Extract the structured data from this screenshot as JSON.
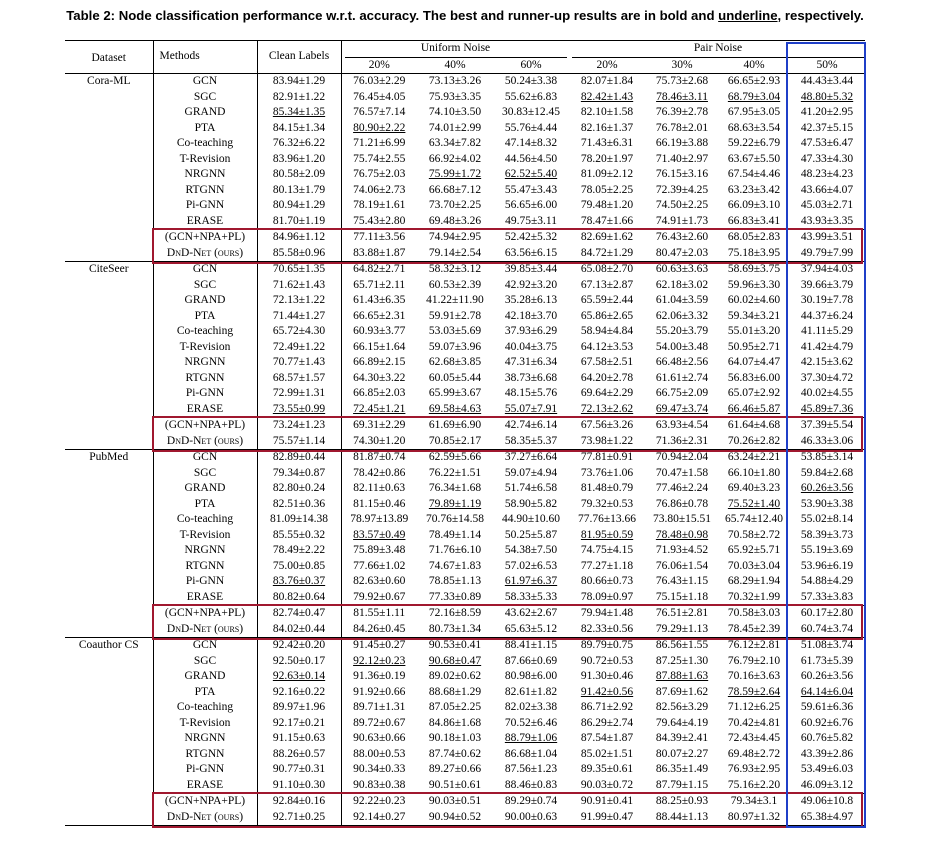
{
  "caption": {
    "prefix": "Table 2: Node classification performance w.r.t. accuracy. The best and runner-up results are in bold and ",
    "underline_word": "underline",
    "suffix": ", respectively."
  },
  "header": {
    "dataset": "Dataset",
    "methods": "Methods",
    "clean": "Clean Labels",
    "uniform": "Uniform Noise",
    "pair": "Pair Noise",
    "rates": [
      "20%",
      "40%",
      "60%",
      "20%",
      "30%",
      "40%",
      "50%"
    ]
  },
  "highlight_colors": {
    "row_box": "#a0182f",
    "column_box": "#1f3fc8"
  },
  "datasets": [
    {
      "name": "Cora-ML",
      "rows": [
        {
          "m": "GCN",
          "v": [
            "83.94±1.29",
            "76.03±2.29",
            "73.13±3.26",
            "50.24±3.38",
            "82.07±1.84",
            "75.73±2.68",
            "66.65±2.93",
            "44.43±3.44"
          ]
        },
        {
          "m": "SGC",
          "v": [
            "82.91±1.22",
            "76.45±4.05",
            "75.93±3.35",
            "55.62±6.83",
            "82.42±1.43",
            "78.46±3.11",
            "68.79±3.04",
            "48.80±5.32"
          ]
        },
        {
          "m": "GRAND",
          "v": [
            "85.34±1.35",
            "76.57±7.14",
            "74.10±3.50",
            "30.83±12.45",
            "82.10±1.58",
            "76.39±2.78",
            "67.95±3.05",
            "41.20±2.95"
          ]
        },
        {
          "m": "PTA",
          "v": [
            "84.15±1.34",
            "80.90±2.22",
            "74.01±2.99",
            "55.76±4.44",
            "82.16±1.37",
            "76.78±2.01",
            "68.63±3.54",
            "42.37±5.15"
          ]
        },
        {
          "m": "Co-teaching",
          "v": [
            "76.32±6.22",
            "71.21±6.99",
            "63.34±7.82",
            "47.14±8.32",
            "71.43±6.31",
            "66.19±3.88",
            "59.22±6.79",
            "47.53±6.47"
          ]
        },
        {
          "m": "T-Revision",
          "v": [
            "83.96±1.20",
            "75.74±2.55",
            "66.92±4.02",
            "44.56±4.50",
            "78.20±1.97",
            "71.40±2.97",
            "63.67±5.50",
            "47.33±4.30"
          ]
        },
        {
          "m": "NRGNN",
          "v": [
            "80.58±2.09",
            "76.75±2.03",
            "75.99±1.72",
            "62.52±5.40",
            "81.09±2.12",
            "76.15±3.16",
            "67.54±4.46",
            "48.23±4.23"
          ]
        },
        {
          "m": "RTGNN",
          "v": [
            "80.13±1.79",
            "74.06±2.73",
            "66.68±7.12",
            "55.47±3.43",
            "78.05±2.25",
            "72.39±4.25",
            "63.23±3.42",
            "43.66±4.07"
          ]
        },
        {
          "m": "Pi-GNN",
          "v": [
            "80.94±1.29",
            "78.19±1.61",
            "73.70±2.25",
            "56.65±6.00",
            "79.48±1.20",
            "74.50±2.25",
            "66.09±3.10",
            "45.03±2.71"
          ]
        },
        {
          "m": "ERASE",
          "v": [
            "81.70±1.19",
            "75.43±2.80",
            "69.48±3.26",
            "49.75±3.11",
            "78.47±1.66",
            "74.91±1.73",
            "66.83±3.41",
            "43.93±3.35"
          ]
        },
        {
          "m": "(GCN+NPA+PL)",
          "v": [
            "84.96±1.12",
            "77.11±3.56",
            "74.94±2.95",
            "52.42±5.32",
            "82.69±1.62",
            "76.43±2.60",
            "68.05±2.83",
            "43.99±3.51"
          ]
        },
        {
          "m": "DnD-Net (ours)",
          "v": [
            "85.58±0.96",
            "83.88±1.87",
            "79.14±2.54",
            "63.56±6.15",
            "84.72±1.29",
            "80.47±2.03",
            "75.18±3.95",
            "49.79±7.99"
          ]
        }
      ]
    },
    {
      "name": "CiteSeer",
      "rows": [
        {
          "m": "GCN",
          "v": [
            "70.65±1.35",
            "64.82±2.71",
            "58.32±3.12",
            "39.85±3.44",
            "65.08±2.70",
            "60.63±3.63",
            "58.69±3.75",
            "37.94±4.03"
          ]
        },
        {
          "m": "SGC",
          "v": [
            "71.62±1.43",
            "65.71±2.11",
            "60.53±2.39",
            "42.92±3.20",
            "67.13±2.87",
            "62.18±3.02",
            "59.96±3.30",
            "39.66±3.79"
          ]
        },
        {
          "m": "GRAND",
          "v": [
            "72.13±1.22",
            "61.43±6.35",
            "41.22±11.90",
            "35.28±6.13",
            "65.59±2.44",
            "61.04±3.59",
            "60.02±4.60",
            "30.19±7.78"
          ]
        },
        {
          "m": "PTA",
          "v": [
            "71.44±1.27",
            "66.65±2.31",
            "59.91±2.78",
            "42.18±3.70",
            "65.86±2.65",
            "62.06±3.32",
            "59.34±3.21",
            "44.37±6.24"
          ]
        },
        {
          "m": "Co-teaching",
          "v": [
            "65.72±4.30",
            "60.93±3.77",
            "53.03±5.69",
            "37.93±6.29",
            "58.94±4.84",
            "55.20±3.79",
            "55.01±3.20",
            "41.11±5.29"
          ]
        },
        {
          "m": "T-Revision",
          "v": [
            "72.49±1.22",
            "66.15±1.64",
            "59.07±3.96",
            "40.04±3.75",
            "64.12±3.53",
            "54.00±3.48",
            "50.95±2.71",
            "41.42±4.79"
          ]
        },
        {
          "m": "NRGNN",
          "v": [
            "70.77±1.43",
            "66.89±2.15",
            "62.68±3.85",
            "47.31±6.34",
            "67.58±2.51",
            "66.48±2.56",
            "64.07±4.47",
            "42.15±3.62"
          ]
        },
        {
          "m": "RTGNN",
          "v": [
            "68.57±1.57",
            "64.30±3.22",
            "60.05±5.44",
            "38.73±6.68",
            "64.20±2.78",
            "61.61±2.74",
            "56.83±6.00",
            "37.30±4.72"
          ]
        },
        {
          "m": "Pi-GNN",
          "v": [
            "72.99±1.31",
            "66.85±2.03",
            "65.99±3.67",
            "48.15±5.76",
            "69.64±2.29",
            "66.75±2.09",
            "65.07±2.92",
            "40.02±4.55"
          ]
        },
        {
          "m": "ERASE",
          "v": [
            "73.55±0.99",
            "72.45±1.21",
            "69.58±4.63",
            "55.07±7.91",
            "72.13±2.62",
            "69.47±3.74",
            "66.46±5.87",
            "45.89±7.36"
          ]
        },
        {
          "m": "(GCN+NPA+PL)",
          "v": [
            "73.24±1.23",
            "69.31±2.29",
            "61.69±6.90",
            "42.74±6.14",
            "67.56±3.26",
            "63.93±4.54",
            "61.64±4.68",
            "37.39±5.54"
          ]
        },
        {
          "m": "DnD-Net (ours)",
          "v": [
            "75.57±1.14",
            "74.30±1.20",
            "70.85±2.17",
            "58.35±5.37",
            "73.98±1.22",
            "71.36±2.31",
            "70.26±2.82",
            "46.33±3.06"
          ]
        }
      ]
    },
    {
      "name": "PubMed",
      "rows": [
        {
          "m": "GCN",
          "v": [
            "82.89±0.44",
            "81.87±0.74",
            "62.59±5.66",
            "37.27±6.64",
            "77.81±0.91",
            "70.94±2.04",
            "63.24±2.21",
            "53.85±3.14"
          ]
        },
        {
          "m": "SGC",
          "v": [
            "79.34±0.87",
            "78.42±0.86",
            "76.22±1.51",
            "59.07±4.94",
            "73.76±1.06",
            "70.47±1.58",
            "66.10±1.80",
            "59.84±2.68"
          ]
        },
        {
          "m": "GRAND",
          "v": [
            "82.80±0.24",
            "82.11±0.63",
            "76.34±1.68",
            "51.74±6.58",
            "81.48±0.79",
            "77.46±2.24",
            "69.40±3.23",
            "60.26±3.56"
          ]
        },
        {
          "m": "PTA",
          "v": [
            "82.51±0.36",
            "81.15±0.46",
            "79.89±1.19",
            "58.90±5.82",
            "79.32±0.53",
            "76.86±0.78",
            "75.52±1.40",
            "53.90±3.38"
          ]
        },
        {
          "m": "Co-teaching",
          "v": [
            "81.09±14.38",
            "78.97±13.89",
            "70.76±14.58",
            "44.90±10.60",
            "77.76±13.66",
            "73.80±15.51",
            "65.74±12.40",
            "55.02±8.14"
          ]
        },
        {
          "m": "T-Revision",
          "v": [
            "85.55±0.32",
            "83.57±0.49",
            "78.49±1.14",
            "50.25±5.87",
            "81.95±0.59",
            "78.48±0.98",
            "70.58±2.72",
            "58.39±3.73"
          ]
        },
        {
          "m": "NRGNN",
          "v": [
            "78.49±2.22",
            "75.89±3.48",
            "71.76±6.10",
            "54.38±7.50",
            "74.75±4.15",
            "71.93±4.52",
            "65.92±5.71",
            "55.19±3.69"
          ]
        },
        {
          "m": "RTGNN",
          "v": [
            "75.00±0.85",
            "77.66±1.02",
            "74.67±1.83",
            "57.02±6.53",
            "77.27±1.18",
            "76.06±1.54",
            "70.03±3.04",
            "53.96±6.19"
          ]
        },
        {
          "m": "Pi-GNN",
          "v": [
            "83.76±0.37",
            "82.63±0.60",
            "78.85±1.13",
            "61.97±6.37",
            "80.66±0.73",
            "76.43±1.15",
            "68.29±1.94",
            "54.88±4.29"
          ]
        },
        {
          "m": "ERASE",
          "v": [
            "80.82±0.64",
            "79.92±0.67",
            "77.33±0.89",
            "58.33±5.33",
            "78.09±0.97",
            "75.15±1.18",
            "70.32±1.99",
            "57.33±3.83"
          ]
        },
        {
          "m": "(GCN+NPA+PL)",
          "v": [
            "82.74±0.47",
            "81.55±1.11",
            "72.16±8.59",
            "43.62±2.67",
            "79.94±1.48",
            "76.51±2.81",
            "70.58±3.03",
            "60.17±2.80"
          ]
        },
        {
          "m": "DnD-Net (ours)",
          "v": [
            "84.02±0.44",
            "84.26±0.45",
            "80.73±1.34",
            "65.63±5.12",
            "82.33±0.56",
            "79.29±1.13",
            "78.45±2.39",
            "60.74±3.74"
          ]
        }
      ]
    },
    {
      "name": "Coauthor CS",
      "rows": [
        {
          "m": "GCN",
          "v": [
            "92.42±0.20",
            "91.45±0.27",
            "90.53±0.41",
            "88.41±1.15",
            "89.79±0.75",
            "86.56±1.55",
            "76.12±2.81",
            "51.08±3.74"
          ]
        },
        {
          "m": "SGC",
          "v": [
            "92.50±0.17",
            "92.12±0.23",
            "90.68±0.47",
            "87.66±0.69",
            "90.72±0.53",
            "87.25±1.30",
            "76.79±2.10",
            "61.73±5.39"
          ]
        },
        {
          "m": "GRAND",
          "v": [
            "92.63±0.14",
            "91.36±0.19",
            "89.02±0.62",
            "80.98±6.00",
            "91.30±0.46",
            "87.88±1.63",
            "70.16±3.63",
            "60.26±3.56"
          ]
        },
        {
          "m": "PTA",
          "v": [
            "92.16±0.22",
            "91.92±0.66",
            "88.68±1.29",
            "82.61±1.82",
            "91.42±0.56",
            "87.69±1.62",
            "78.59±2.64",
            "64.14±6.04"
          ]
        },
        {
          "m": "Co-teaching",
          "v": [
            "89.97±1.96",
            "89.71±1.31",
            "87.05±2.25",
            "82.02±3.38",
            "86.71±2.92",
            "82.56±3.29",
            "71.12±6.25",
            "59.61±6.36"
          ]
        },
        {
          "m": "T-Revision",
          "v": [
            "92.17±0.21",
            "89.72±0.67",
            "84.86±1.68",
            "70.52±6.46",
            "86.29±2.74",
            "79.64±4.19",
            "70.42±4.81",
            "60.92±6.76"
          ]
        },
        {
          "m": "NRGNN",
          "v": [
            "91.15±0.63",
            "90.63±0.66",
            "90.18±1.03",
            "88.79±1.06",
            "87.54±1.87",
            "84.39±2.41",
            "72.43±4.45",
            "60.76±5.82"
          ]
        },
        {
          "m": "RTGNN",
          "v": [
            "88.26±0.57",
            "88.00±0.53",
            "87.74±0.62",
            "86.68±1.04",
            "85.02±1.51",
            "80.07±2.27",
            "69.48±2.72",
            "43.39±2.86"
          ]
        },
        {
          "m": "Pi-GNN",
          "v": [
            "90.77±0.31",
            "90.34±0.33",
            "89.27±0.66",
            "87.56±1.23",
            "89.35±0.61",
            "86.35±1.49",
            "76.93±2.95",
            "53.49±6.03"
          ]
        },
        {
          "m": "ERASE",
          "v": [
            "91.10±0.30",
            "90.83±0.38",
            "90.51±0.61",
            "88.46±0.83",
            "90.03±0.72",
            "87.79±1.15",
            "75.16±2.20",
            "46.09±3.12"
          ]
        },
        {
          "m": "(GCN+NPA+PL)",
          "v": [
            "92.84±0.16",
            "92.22±0.23",
            "90.03±0.51",
            "89.29±0.74",
            "90.91±0.41",
            "88.25±0.93",
            "79.34±3.1",
            "49.06±10.8"
          ]
        },
        {
          "m": "DnD-Net (ours)",
          "v": [
            "92.71±0.25",
            "92.14±0.27",
            "90.94±0.52",
            "90.00±0.63",
            "91.99±0.47",
            "88.44±1.13",
            "80.97±1.32",
            "65.38±4.97"
          ]
        }
      ]
    }
  ],
  "style_marks": {
    "bold": [
      [
        0,
        10,
        0
      ],
      [
        0,
        10,
        -1
      ],
      [
        0,
        11,
        0
      ],
      [
        0,
        11,
        1
      ],
      [
        0,
        11,
        2
      ],
      [
        0,
        11,
        3
      ],
      [
        0,
        11,
        4
      ],
      [
        0,
        11,
        5
      ],
      [
        0,
        11,
        6
      ],
      [
        0,
        11,
        7
      ],
      [
        1,
        10,
        0
      ],
      [
        1,
        11,
        0
      ],
      [
        1,
        11,
        1
      ],
      [
        1,
        11,
        2
      ],
      [
        1,
        11,
        3
      ],
      [
        1,
        11,
        4
      ],
      [
        1,
        11,
        5
      ],
      [
        1,
        11,
        6
      ],
      [
        1,
        11,
        7
      ],
      [
        2,
        10,
        0
      ],
      [
        2,
        11,
        0
      ],
      [
        2,
        11,
        1
      ],
      [
        2,
        11,
        2
      ],
      [
        2,
        11,
        3
      ],
      [
        2,
        11,
        4
      ],
      [
        2,
        11,
        5
      ],
      [
        2,
        11,
        6
      ],
      [
        2,
        11,
        7
      ],
      [
        3,
        10,
        0
      ],
      [
        3,
        11,
        0
      ],
      [
        3,
        11,
        1
      ],
      [
        3,
        11,
        2
      ],
      [
        3,
        11,
        3
      ],
      [
        3,
        11,
        4
      ],
      [
        3,
        11,
        5
      ],
      [
        3,
        11,
        6
      ],
      [
        3,
        11,
        7
      ]
    ],
    "underline": [
      [
        0,
        2,
        0
      ],
      [
        0,
        3,
        1
      ],
      [
        0,
        6,
        2
      ],
      [
        0,
        6,
        3
      ],
      [
        0,
        1,
        4
      ],
      [
        0,
        1,
        5
      ],
      [
        0,
        1,
        6
      ],
      [
        0,
        1,
        7
      ],
      [
        1,
        9,
        0
      ],
      [
        1,
        9,
        1
      ],
      [
        1,
        9,
        2
      ],
      [
        1,
        9,
        3
      ],
      [
        1,
        9,
        4
      ],
      [
        1,
        9,
        5
      ],
      [
        1,
        9,
        6
      ],
      [
        1,
        9,
        7
      ],
      [
        2,
        8,
        0
      ],
      [
        2,
        5,
        1
      ],
      [
        2,
        3,
        2
      ],
      [
        2,
        8,
        3
      ],
      [
        2,
        5,
        4
      ],
      [
        2,
        5,
        5
      ],
      [
        2,
        3,
        6
      ],
      [
        2,
        2,
        7
      ],
      [
        3,
        2,
        0
      ],
      [
        3,
        1,
        1
      ],
      [
        3,
        1,
        2
      ],
      [
        3,
        6,
        3
      ],
      [
        3,
        3,
        4
      ],
      [
        3,
        2,
        5
      ],
      [
        3,
        3,
        6
      ],
      [
        3,
        3,
        7
      ]
    ]
  }
}
